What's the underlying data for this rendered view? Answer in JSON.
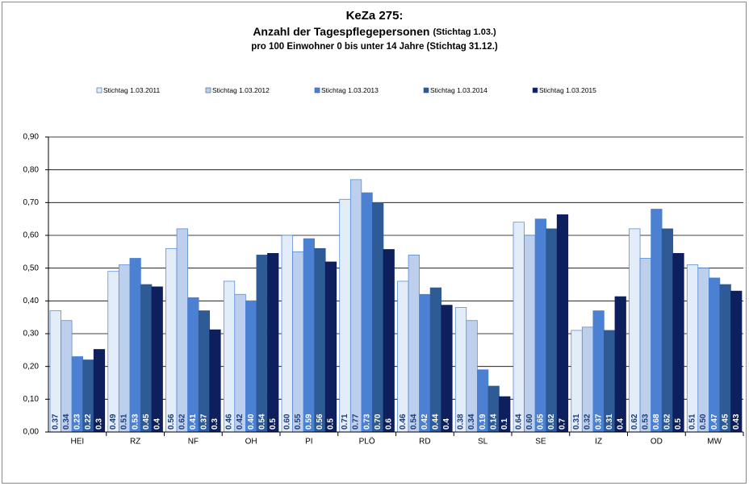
{
  "chart_data": {
    "type": "bar",
    "title": "KeZa 275:",
    "subtitle": "Anzahl der Tagespflegepersonen",
    "subtitle_note": "(Stichtag 1.03.)",
    "subtitle2": "pro 100 Einwohner 0 bis unter 14 Jahre (Stichtag 31.12.)",
    "categories": [
      "HEI",
      "RZ",
      "NF",
      "OH",
      "PI",
      "PLÖ",
      "RD",
      "SL",
      "SE",
      "IZ",
      "OD",
      "MW"
    ],
    "series": [
      {
        "name": "Stichtag 1.03.2011",
        "color": "#e2edf9",
        "label_color": "#1f3c78",
        "values": [
          0.37,
          0.49,
          0.56,
          0.46,
          0.6,
          0.71,
          0.46,
          0.38,
          0.64,
          0.31,
          0.62,
          0.51
        ],
        "value_labels": [
          "0.37",
          "0.49",
          "0.56",
          "0.46",
          "0.60",
          "0.71",
          "0.46",
          "0.38",
          "0.64",
          "0.31",
          "0.62",
          "0.51"
        ]
      },
      {
        "name": "Stichtag 1.03.2012",
        "color": "#bcd0ee",
        "label_color": "#1f3c78",
        "values": [
          0.34,
          0.51,
          0.62,
          0.42,
          0.55,
          0.77,
          0.54,
          0.34,
          0.6,
          0.32,
          0.53,
          0.5
        ],
        "value_labels": [
          "0.34",
          "0.51",
          "0.62",
          "0.42",
          "0.55",
          "0.77",
          "0.54",
          "0.34",
          "0.60",
          "0.32",
          "0.53",
          "0.50"
        ]
      },
      {
        "name": "Stichtag 1.03.2013",
        "color": "#4b80d2",
        "label_color": "#ffffff",
        "values": [
          0.23,
          0.53,
          0.41,
          0.4,
          0.59,
          0.73,
          0.42,
          0.19,
          0.65,
          0.37,
          0.68,
          0.47
        ],
        "value_labels": [
          "0.23",
          "0.53",
          "0.41",
          "0.40",
          "0.59",
          "0.73",
          "0.42",
          "0.19",
          "0.65",
          "0.37",
          "0.68",
          "0.47"
        ]
      },
      {
        "name": "Stichtag 1.03.2014",
        "color": "#2e5a95",
        "label_color": "#ffffff",
        "values": [
          0.22,
          0.45,
          0.37,
          0.54,
          0.56,
          0.7,
          0.44,
          0.14,
          0.62,
          0.31,
          0.62,
          0.45
        ],
        "value_labels": [
          "0.22",
          "0.45",
          "0.37",
          "0.54",
          "0.56",
          "0.70",
          "0.44",
          "0.14",
          "0.62",
          "0.31",
          "0.62",
          "0.45"
        ]
      },
      {
        "name": "Stichtag 1.03.2015",
        "color": "#0d1f5c",
        "label_color": "#ffffff",
        "values": [
          0.252,
          0.443,
          0.312,
          0.545,
          0.519,
          0.557,
          0.387,
          0.108,
          0.663,
          0.413,
          0.545,
          0.43
        ],
        "value_labels": [
          "0.3",
          "0.4",
          "0.3",
          "0.5",
          "0.5",
          "0.6",
          "0.4",
          "0.1",
          "0.7",
          "0.4",
          "0.5",
          "0.43"
        ]
      }
    ],
    "ylim": [
      0,
      0.9
    ],
    "yticks": [
      {
        "value": 0,
        "label": "0,00"
      },
      {
        "value": 0.1,
        "label": "0,10"
      },
      {
        "value": 0.2,
        "label": "0,20"
      },
      {
        "value": 0.3,
        "label": "0,30"
      },
      {
        "value": 0.4,
        "label": "0,40"
      },
      {
        "value": 0.5,
        "label": "0,50"
      },
      {
        "value": 0.6,
        "label": "0,60"
      },
      {
        "value": 0.7,
        "label": "0,70"
      },
      {
        "value": 0.8,
        "label": "0,80"
      },
      {
        "value": 0.9,
        "label": "0,90"
      }
    ],
    "grid": true
  }
}
